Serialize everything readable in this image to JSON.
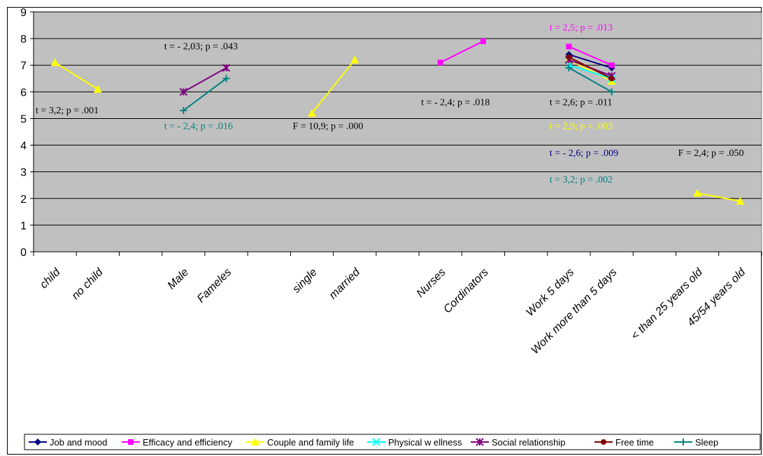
{
  "chart_data": {
    "type": "line",
    "title": "",
    "xlabel": "",
    "ylabel": "",
    "ylim": [
      0,
      9
    ],
    "yticks": [
      0,
      1,
      2,
      3,
      4,
      5,
      6,
      7,
      8,
      9
    ],
    "grid": true,
    "legend_position": "bottom",
    "background_color": "#c0c0c0",
    "categories": [
      "child",
      "no child",
      "",
      "Male",
      "Fameles",
      "",
      "single",
      "married",
      "",
      "Nurses",
      "Cordinators",
      "",
      "Work 5 days",
      "Work more than 5 days",
      "",
      "< than 25 years old",
      "45/54 years old"
    ],
    "series": [
      {
        "name": "Job and mood",
        "color": "#000080",
        "marker": "diamond",
        "values": [
          null,
          null,
          null,
          null,
          null,
          null,
          null,
          null,
          null,
          null,
          null,
          null,
          7.4,
          6.9,
          null,
          null,
          null
        ]
      },
      {
        "name": "Efficacy and efficiency",
        "color": "#ff00ff",
        "marker": "square",
        "values": [
          null,
          null,
          null,
          null,
          null,
          null,
          null,
          null,
          null,
          7.1,
          7.9,
          null,
          7.7,
          7.0,
          null,
          null,
          null
        ]
      },
      {
        "name": "Couple and family life",
        "color": "#ffff00",
        "marker": "triangle",
        "values": [
          7.1,
          6.1,
          null,
          null,
          null,
          null,
          5.2,
          7.2,
          null,
          null,
          null,
          null,
          7.2,
          6.4,
          null,
          2.2,
          1.9
        ]
      },
      {
        "name": "Physical w ellness",
        "color": "#00ffff",
        "marker": "x",
        "values": [
          null,
          null,
          null,
          null,
          null,
          null,
          null,
          null,
          null,
          null,
          null,
          null,
          7.0,
          6.5,
          null,
          null,
          null
        ]
      },
      {
        "name": "Social relationship",
        "color": "#800080",
        "marker": "star",
        "values": [
          null,
          null,
          null,
          6.0,
          6.9,
          null,
          null,
          null,
          null,
          null,
          null,
          null,
          7.2,
          6.6,
          null,
          null,
          null
        ]
      },
      {
        "name": "Free time",
        "color": "#800000",
        "marker": "circle",
        "values": [
          null,
          null,
          null,
          null,
          null,
          null,
          null,
          null,
          null,
          null,
          null,
          null,
          7.3,
          6.5,
          null,
          null,
          null
        ]
      },
      {
        "name": "Sleep",
        "color": "#008080",
        "marker": "plus",
        "values": [
          null,
          null,
          null,
          5.3,
          6.5,
          null,
          null,
          null,
          null,
          null,
          null,
          null,
          6.9,
          6.0,
          null,
          null,
          null
        ]
      }
    ],
    "annotations": [
      {
        "text": "t = 3,2; p = .001",
        "color": "#000000",
        "anchor_category": 0,
        "y": 5.2
      },
      {
        "text": "t = - 2,03; p = .043",
        "color": "#000000",
        "anchor_category": 3,
        "y": 7.6
      },
      {
        "text": "t = - 2,4; p = .016",
        "color": "#008080",
        "anchor_category": 3,
        "y": 4.6
      },
      {
        "text": "F = 10,9; p = .000",
        "color": "#000000",
        "anchor_category": 6,
        "y": 4.6
      },
      {
        "text": "t = - 2,4; p = .018",
        "color": "#000000",
        "anchor_category": 9,
        "y": 5.5
      },
      {
        "text": "t = 2,5; p = .013",
        "color": "#ff00ff",
        "anchor_category": 12,
        "y": 8.3
      },
      {
        "text": "t = 2,6; p = .011",
        "color": "#000000",
        "anchor_category": 12,
        "y": 5.5
      },
      {
        "text": "t = 2,9; p = .003",
        "color": "#ffff00",
        "anchor_category": 12,
        "y": 4.6
      },
      {
        "text": "t = - 2,6; p = .009",
        "color": "#000080",
        "anchor_category": 12,
        "y": 3.6
      },
      {
        "text": "t = 3,2;  p = .002",
        "color": "#008080",
        "anchor_category": 12,
        "y": 2.6
      },
      {
        "text": "F = 2,4; p = .050",
        "color": "#000000",
        "anchor_category": 15,
        "y": 3.6
      }
    ]
  }
}
